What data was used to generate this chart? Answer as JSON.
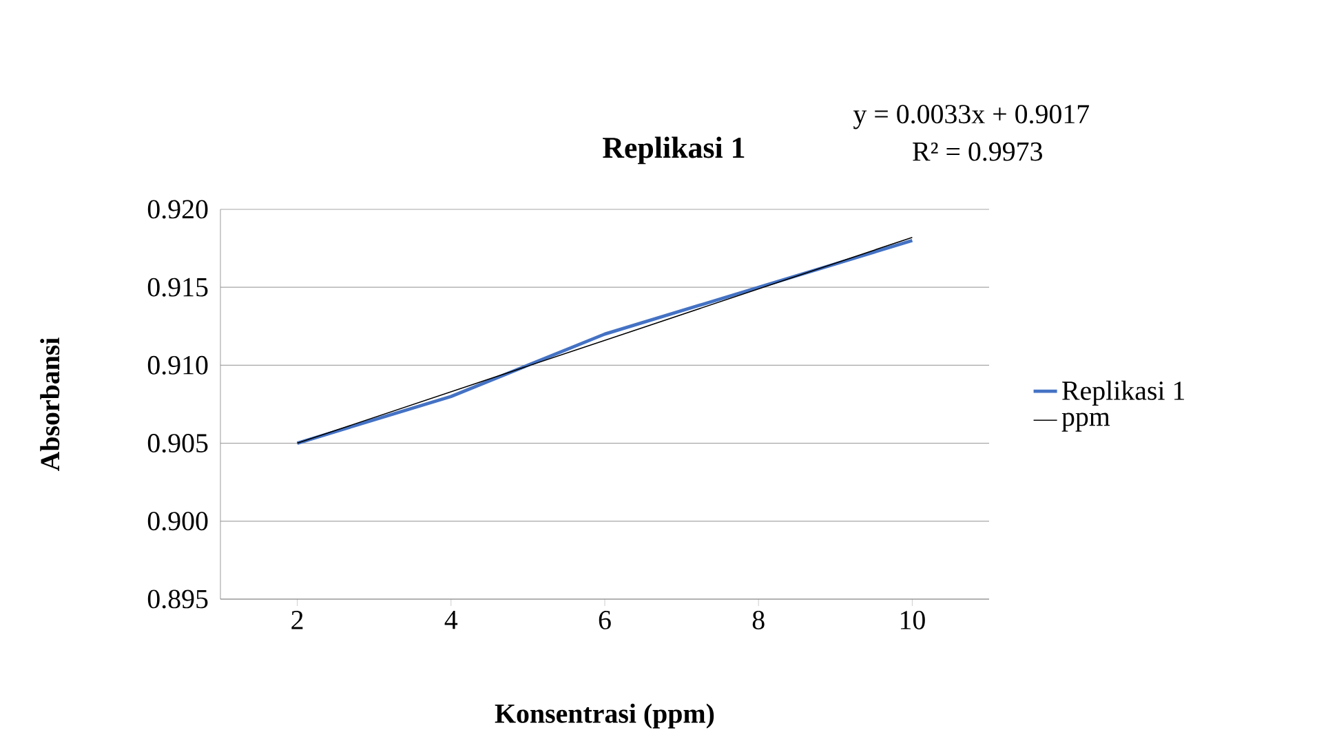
{
  "chart_data": {
    "type": "line",
    "title": "Replikasi 1",
    "xlabel": "Konsentrasi (ppm)",
    "ylabel": "Absorbansi",
    "categories": [
      "2",
      "4",
      "6",
      "8",
      "10"
    ],
    "series": [
      {
        "name": "Replikasi 1",
        "color": "#4472c4",
        "values": [
          0.905,
          0.908,
          0.912,
          0.915,
          0.918
        ]
      },
      {
        "name": "ppm",
        "color": "#000000",
        "values": [
          0.905,
          0.9083,
          0.9116,
          0.9149,
          0.9182
        ]
      }
    ],
    "ylim": [
      0.895,
      0.92
    ],
    "yticks": [
      {
        "value": 0.895,
        "label": "0.895"
      },
      {
        "value": 0.9,
        "label": "0.900"
      },
      {
        "value": 0.905,
        "label": "0.905"
      },
      {
        "value": 0.91,
        "label": "0.910"
      },
      {
        "value": 0.915,
        "label": "0.915"
      },
      {
        "value": 0.92,
        "label": "0.920"
      }
    ],
    "annotations": [
      "y = 0.0033x + 0.9017",
      "R² = 0.9973"
    ],
    "grid": "y",
    "legend": "right",
    "marker": "none",
    "line_style": "solid"
  }
}
